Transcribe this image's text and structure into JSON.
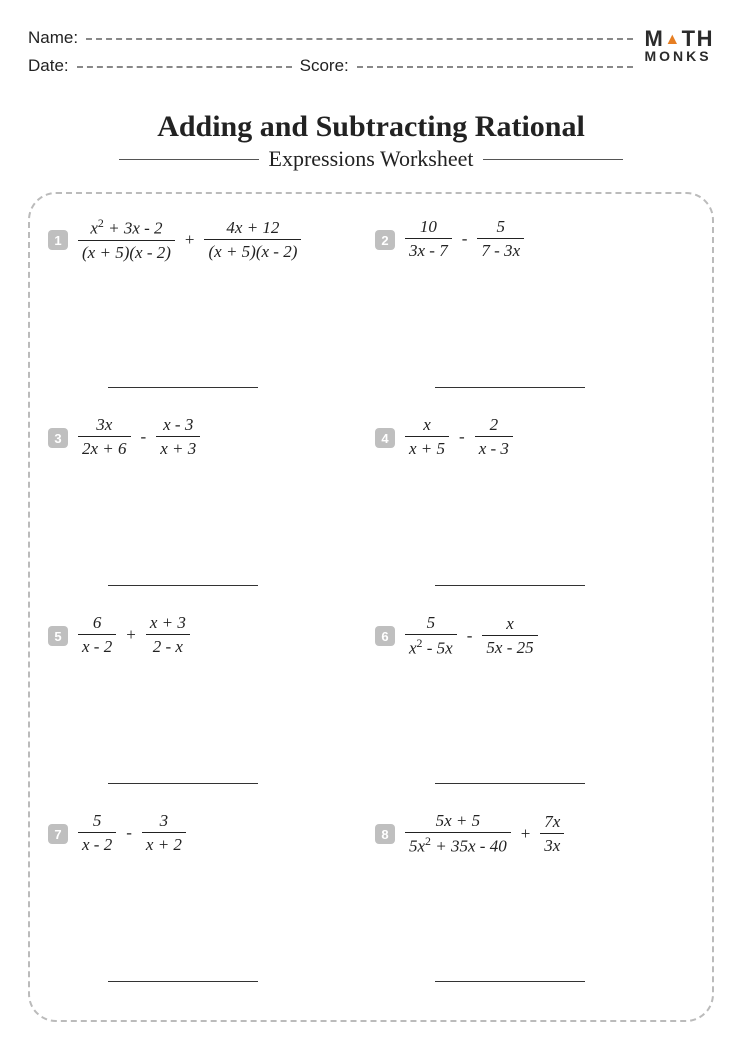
{
  "header": {
    "name_label": "Name:",
    "date_label": "Date:",
    "score_label": "Score:"
  },
  "logo": {
    "line1_left": "M",
    "line1_right": "TH",
    "line2": "MONKS"
  },
  "title": {
    "main": "Adding and Subtracting Rational",
    "sub": "Expressions Worksheet"
  },
  "problems": [
    {
      "n": "1",
      "t1n": "x² + 3x - 2",
      "t1d": "(x + 5)(x - 2)",
      "op": "+",
      "t2n": "4x + 12",
      "t2d": "(x + 5)(x - 2)"
    },
    {
      "n": "2",
      "t1n": "10",
      "t1d": "3x - 7",
      "op": "-",
      "t2n": "5",
      "t2d": "7 - 3x"
    },
    {
      "n": "3",
      "t1n": "3x",
      "t1d": "2x + 6",
      "op": "-",
      "t2n": "x - 3",
      "t2d": "x + 3"
    },
    {
      "n": "4",
      "t1n": "x",
      "t1d": "x + 5",
      "op": "-",
      "t2n": "2",
      "t2d": "x - 3"
    },
    {
      "n": "5",
      "t1n": "6",
      "t1d": "x - 2",
      "op": "+",
      "t2n": "x + 3",
      "t2d": "2 - x"
    },
    {
      "n": "6",
      "t1n": "5",
      "t1d": "x² - 5x",
      "op": "-",
      "t2n": "x",
      "t2d": "5x - 25"
    },
    {
      "n": "7",
      "t1n": "5",
      "t1d": "x - 2",
      "op": "-",
      "t2n": "3",
      "t2d": "x + 2"
    },
    {
      "n": "8",
      "t1n": "5x + 5",
      "t1d": "5x² + 35x - 40",
      "op": "+",
      "t2n": "7x",
      "t2d": "3x"
    }
  ],
  "style": {
    "badge_bg": "#bfbfbf",
    "badge_fg": "#ffffff",
    "dash_color": "#bbbbbb",
    "accent_triangle": "#e67e22",
    "text_color": "#222222"
  }
}
